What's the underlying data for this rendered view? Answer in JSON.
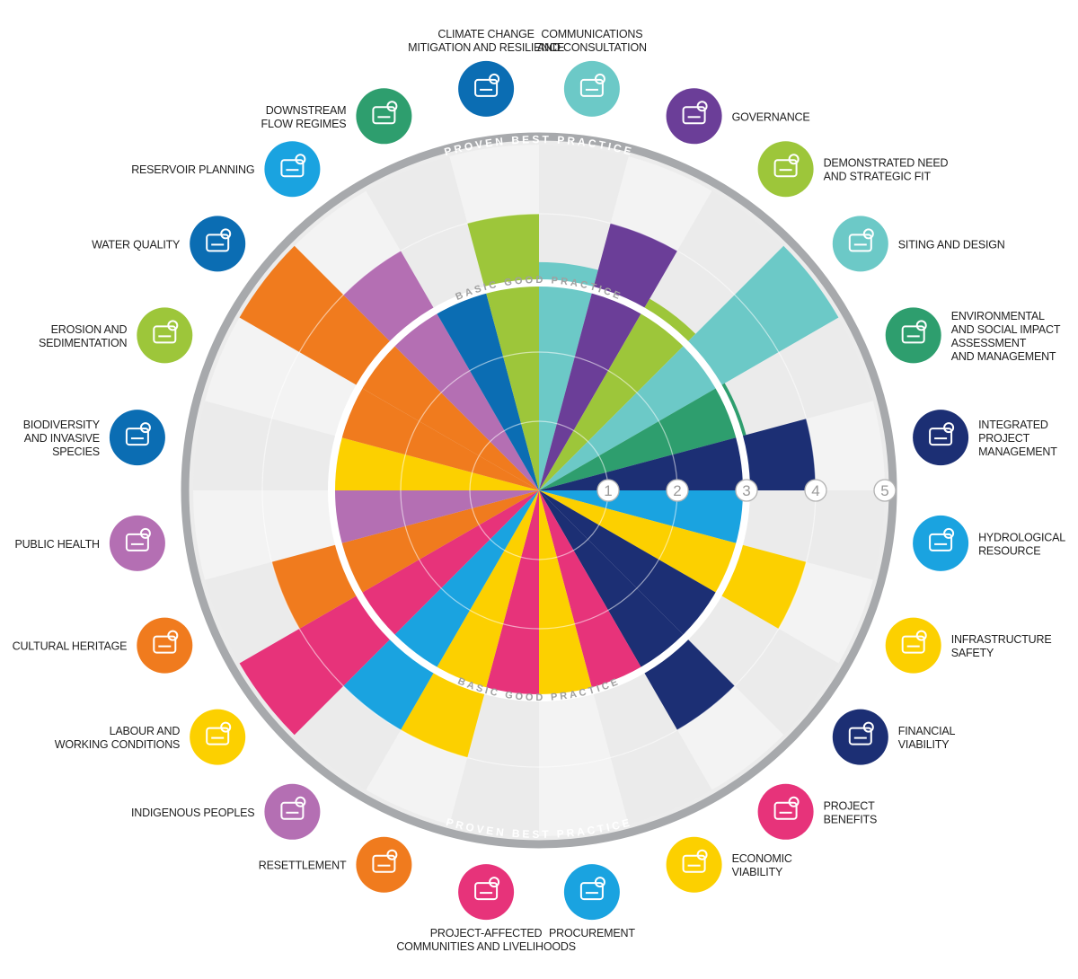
{
  "chart_data": {
    "type": "polar-bar",
    "scale_labels": [
      "1",
      "2",
      "3",
      "4",
      "5"
    ],
    "rmax": 5,
    "ring_labels": {
      "basic": "BASIC GOOD PRACTICE",
      "proven": "PROVEN BEST PRACTICE"
    },
    "categories": [
      {
        "label": [
          "COMMUNICATIONS",
          "AND CONSULTATION"
        ],
        "value": 3.3,
        "color": "#6cc9c7",
        "icon": "chat-bubbles-icon"
      },
      {
        "label": [
          "GOVERNANCE"
        ],
        "value": 4.0,
        "color": "#6b3e98",
        "icon": "checklist-document-icon"
      },
      {
        "label": [
          "DEMONSTRATED NEED",
          "AND STRATEGIC FIT"
        ],
        "value": 3.2,
        "color": "#9dc63a",
        "icon": "puzzle-icon"
      },
      {
        "label": [
          "SITING AND DESIGN"
        ],
        "value": 5.0,
        "color": "#6cc9c7",
        "icon": "map-pin-icon"
      },
      {
        "label": [
          "ENVIRONMENTAL",
          "AND SOCIAL IMPACT",
          "ASSESSMENT",
          "AND MANAGEMENT"
        ],
        "value": 3.1,
        "color": "#2e9e6e",
        "icon": "person-tree-icon"
      },
      {
        "label": [
          "INTEGRATED",
          "PROJECT",
          "MANAGEMENT"
        ],
        "value": 4.0,
        "color": "#1c2f74",
        "icon": "clipboard-gear-icon"
      },
      {
        "label": [
          "HYDROLOGICAL",
          "RESOURCE"
        ],
        "value": 3.0,
        "color": "#1aa3e0",
        "icon": "water-cycle-icon"
      },
      {
        "label": [
          "INFRASTRUCTURE",
          "SAFETY"
        ],
        "value": 4.0,
        "color": "#fcd000",
        "icon": "dam-icon"
      },
      {
        "label": [
          "FINANCIAL",
          "VIABILITY"
        ],
        "value": 3.0,
        "color": "#1c2f74",
        "icon": "magnifier-chart-icon"
      },
      {
        "label": [
          "PROJECT",
          "BENEFITS"
        ],
        "value": 4.0,
        "color": "#1c2f74",
        "icon": "bridge-people-icon"
      },
      {
        "label": [
          "ECONOMIC",
          "VIABILITY"
        ],
        "value": 3.0,
        "color": "#e7337a",
        "icon": "coins-globe-icon"
      },
      {
        "label": [
          "PROCUREMENT"
        ],
        "value": 3.0,
        "color": "#fcd000",
        "icon": "shopping-cart-icon"
      },
      {
        "label": [
          "PROJECT-AFFECTED",
          "COMMUNITIES AND LIVELIHOODS"
        ],
        "value": 3.0,
        "color": "#e7337a",
        "icon": "family-icon"
      },
      {
        "label": [
          "RESETTLEMENT"
        ],
        "value": 4.0,
        "color": "#fcd000",
        "icon": "house-tree-icon"
      },
      {
        "label": [
          "INDIGENOUS PEOPLES"
        ],
        "value": 4.0,
        "color": "#1aa3e0",
        "icon": "people-river-icon"
      },
      {
        "label": [
          "LABOUR AND",
          "WORKING CONDITIONS"
        ],
        "value": 5.0,
        "color": "#e7337a",
        "icon": "hard-hat-icon"
      },
      {
        "label": [
          "CULTURAL HERITAGE"
        ],
        "value": 4.0,
        "color": "#f07b1e",
        "icon": "heritage-pattern-icon"
      },
      {
        "label": [
          "PUBLIC HEALTH"
        ],
        "value": 3.0,
        "color": "#b46fb3",
        "icon": "hands-cross-icon"
      },
      {
        "label": [
          "BIODIVERSITY",
          "AND INVASIVE",
          "SPECIES"
        ],
        "value": 3.0,
        "color": "#fcd000",
        "icon": "fish-tree-icon"
      },
      {
        "label": [
          "EROSION AND",
          "SEDIMENTATION"
        ],
        "value": 3.0,
        "color": "#f07b1e",
        "icon": "sediment-icon"
      },
      {
        "label": [
          "WATER QUALITY"
        ],
        "value": 5.0,
        "color": "#f07b1e",
        "icon": "water-drop-magnifier-icon"
      },
      {
        "label": [
          "RESERVOIR PLANNING"
        ],
        "value": 4.0,
        "color": "#b46fb3",
        "icon": "reservoir-icon"
      },
      {
        "label": [
          "DOWNSTREAM",
          "FLOW REGIMES"
        ],
        "value": 3.0,
        "color": "#0b6db3",
        "icon": "river-tree-icon"
      },
      {
        "label": [
          "CLIMATE CHANGE",
          "MITIGATION AND RESILIENCE"
        ],
        "value": 4.0,
        "color": "#9dc63a",
        "icon": "cloud-plus-minus-icon"
      }
    ],
    "icon_colors": {
      "COMMUNICATIONS": "#6cc9c7",
      "GOVERNANCE": "#6b3e98",
      "DEMONSTRATED": "#9dc63a",
      "SITING": "#6cc9c7",
      "ENVIRONMENTAL": "#2e9e6e",
      "INTEGRATED": "#1c2f74",
      "HYDROLOGICAL": "#1aa3e0",
      "INFRASTRUCTURE": "#fcd000",
      "FINANCIAL": "#1c2f74",
      "BENEFITS": "#e7337a",
      "ECONOMIC": "#fcd000",
      "PROCUREMENT": "#1aa3e0",
      "AFFECTED": "#e7337a",
      "RESETTLEMENT": "#f07b1e",
      "INDIGENOUS": "#b46fb3",
      "LABOUR": "#fcd000",
      "CULTURAL": "#f07b1e",
      "HEALTH": "#b46fb3",
      "BIODIVERSITY": "#0b6db3",
      "EROSION": "#9dc63a",
      "WATERQ": "#0b6db3",
      "RESERVOIR": "#1aa3e0",
      "DOWNSTREAM": "#2e9e6e",
      "CLIMATE": "#0b6db3"
    }
  }
}
